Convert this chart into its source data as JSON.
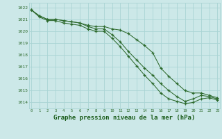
{
  "hours": [
    0,
    1,
    2,
    3,
    4,
    5,
    6,
    7,
    8,
    9,
    10,
    11,
    12,
    13,
    14,
    15,
    16,
    17,
    18,
    19,
    20,
    21,
    22,
    23
  ],
  "line1": [
    1021.8,
    1021.3,
    1021.0,
    1021.0,
    1020.9,
    1020.8,
    1020.7,
    1020.5,
    1020.4,
    1020.4,
    1020.2,
    1020.1,
    1019.8,
    1019.3,
    1018.8,
    1018.2,
    1016.9,
    1016.2,
    1015.6,
    1015.0,
    1014.8,
    1014.8,
    1014.6,
    1014.4
  ],
  "line2": [
    1021.8,
    1021.3,
    1021.0,
    1021.0,
    1020.9,
    1020.8,
    1020.7,
    1020.4,
    1020.2,
    1020.2,
    1019.7,
    1019.1,
    1018.3,
    1017.6,
    1016.9,
    1016.3,
    1015.6,
    1015.0,
    1014.5,
    1014.1,
    1014.3,
    1014.6,
    1014.5,
    1014.3
  ],
  "line3": [
    1021.8,
    1021.2,
    1020.9,
    1020.9,
    1020.7,
    1020.6,
    1020.5,
    1020.2,
    1020.0,
    1020.0,
    1019.4,
    1018.7,
    1017.9,
    1017.1,
    1016.3,
    1015.6,
    1014.8,
    1014.3,
    1014.1,
    1013.9,
    1014.0,
    1014.3,
    1014.4,
    1014.2
  ],
  "line_color": "#2d6a2d",
  "bg_color": "#cce8e8",
  "grid_color": "#aad4d4",
  "title": "Graphe pression niveau de la mer (hPa)",
  "ylim_min": 1013.5,
  "ylim_max": 1022.4,
  "yticks": [
    1014,
    1015,
    1016,
    1017,
    1018,
    1019,
    1020,
    1021,
    1022
  ],
  "title_color": "#1a5c1a",
  "title_fontsize": 6.5
}
